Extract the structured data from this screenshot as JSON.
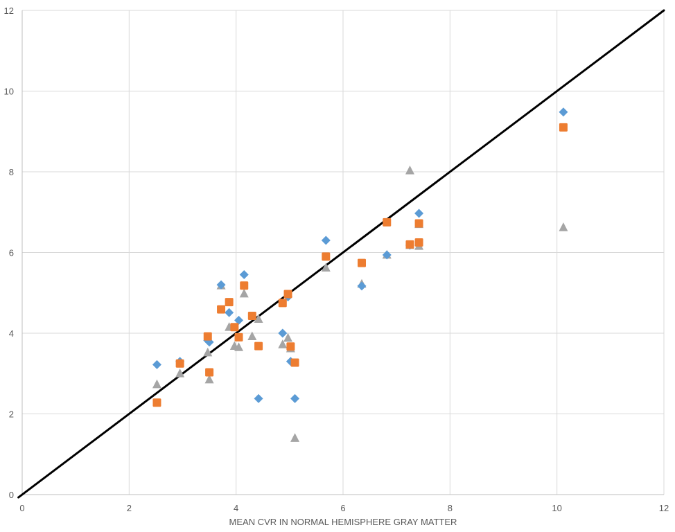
{
  "chart_data": {
    "type": "scatter",
    "title": "",
    "xlabel": "MEAN CVR IN NORMAL HEMISPHERE GRAY MATTER",
    "ylabel": "",
    "xlim": [
      0,
      12
    ],
    "ylim": [
      0,
      12
    ],
    "x_ticks": [
      0,
      2,
      4,
      6,
      8,
      10,
      12
    ],
    "y_ticks": [
      0,
      2,
      4,
      6,
      8,
      10,
      12
    ],
    "x_tick_labels": [
      "0",
      "2",
      "4",
      "6",
      "8",
      "10",
      "12"
    ],
    "y_tick_labels": [
      "0",
      "2",
      "4",
      "6",
      "8",
      "10",
      "12"
    ],
    "grid": true,
    "legend": "none",
    "reference_line": {
      "type": "identity",
      "from": [
        0,
        0
      ],
      "to": [
        12,
        12
      ],
      "color": "#000000"
    },
    "series": [
      {
        "marker": "diamond",
        "color": "#5B9BD5",
        "points": [
          [
            2.52,
            3.22
          ],
          [
            2.95,
            3.3
          ],
          [
            3.47,
            3.82
          ],
          [
            3.5,
            3.78
          ],
          [
            3.72,
            5.2
          ],
          [
            3.87,
            4.51
          ],
          [
            4.05,
            4.32
          ],
          [
            4.15,
            5.45
          ],
          [
            4.42,
            2.38
          ],
          [
            4.87,
            4.0
          ],
          [
            4.97,
            4.9
          ],
          [
            5.02,
            3.3
          ],
          [
            5.1,
            2.38
          ],
          [
            5.68,
            6.3
          ],
          [
            6.35,
            5.17
          ],
          [
            6.82,
            5.94
          ],
          [
            7.25,
            6.18
          ],
          [
            7.42,
            6.97
          ],
          [
            10.12,
            9.48
          ]
        ]
      },
      {
        "marker": "square",
        "color": "#ED7D31",
        "points": [
          [
            2.52,
            2.28
          ],
          [
            2.95,
            3.25
          ],
          [
            3.47,
            3.92
          ],
          [
            3.5,
            3.03
          ],
          [
            3.72,
            4.59
          ],
          [
            3.87,
            4.77
          ],
          [
            3.97,
            4.15
          ],
          [
            4.05,
            3.9
          ],
          [
            4.15,
            5.18
          ],
          [
            4.3,
            4.43
          ],
          [
            4.42,
            3.68
          ],
          [
            4.87,
            4.75
          ],
          [
            4.97,
            4.97
          ],
          [
            5.02,
            3.67
          ],
          [
            5.1,
            3.27
          ],
          [
            5.68,
            5.9
          ],
          [
            6.35,
            5.74
          ],
          [
            6.82,
            6.75
          ],
          [
            7.25,
            6.2
          ],
          [
            7.42,
            6.72
          ],
          [
            7.42,
            6.25
          ],
          [
            10.12,
            9.1
          ]
        ]
      },
      {
        "marker": "triangle",
        "color": "#A5A5A5",
        "points": [
          [
            2.52,
            2.73
          ],
          [
            2.95,
            3.0
          ],
          [
            3.47,
            3.52
          ],
          [
            3.5,
            2.85
          ],
          [
            3.72,
            5.18
          ],
          [
            3.87,
            4.15
          ],
          [
            3.97,
            3.68
          ],
          [
            4.05,
            3.65
          ],
          [
            4.15,
            4.98
          ],
          [
            4.3,
            3.92
          ],
          [
            4.42,
            4.35
          ],
          [
            4.87,
            3.72
          ],
          [
            4.97,
            3.88
          ],
          [
            5.02,
            3.62
          ],
          [
            5.1,
            1.4
          ],
          [
            5.68,
            5.62
          ],
          [
            6.35,
            5.22
          ],
          [
            6.82,
            5.94
          ],
          [
            7.25,
            8.03
          ],
          [
            7.25,
            6.18
          ],
          [
            7.42,
            6.7
          ],
          [
            7.42,
            6.16
          ],
          [
            10.12,
            6.62
          ]
        ]
      }
    ]
  }
}
